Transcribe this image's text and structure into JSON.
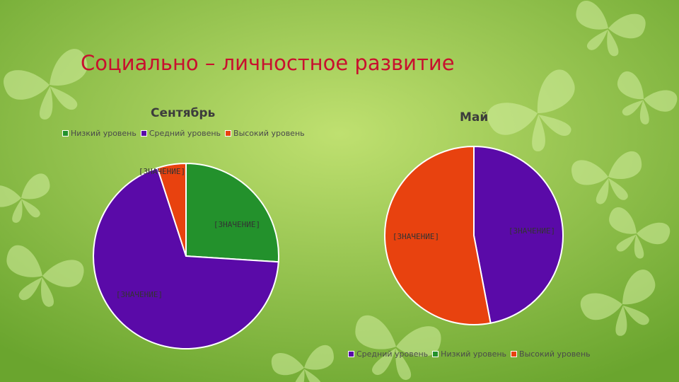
{
  "slide": {
    "title": "Социально – личностное развитие"
  },
  "colors": {
    "background_light": "#b9dc6a",
    "background_dark": "#6aa52e",
    "butterfly": "#d3eea0",
    "title": "#c8102e"
  },
  "chart_data": [
    {
      "type": "pie",
      "title": "Сентябрь",
      "legend_position": "top",
      "legend": [
        {
          "name": "Низкий уровень",
          "color": "#23912c"
        },
        {
          "name": "Средний уровень",
          "color": "#5a0aa8"
        },
        {
          "name": "Высокий уровень",
          "color": "#e8420f"
        }
      ],
      "slices": [
        {
          "name": "Низкий уровень",
          "value": 26,
          "color": "#23912c",
          "label": "[ЗНАЧЕНИЕ]"
        },
        {
          "name": "Средний уровень",
          "value": 69,
          "color": "#5a0aa8",
          "label": "[ЗНАЧЕНИЕ]"
        },
        {
          "name": "Высокий уровень",
          "value": 5,
          "color": "#e8420f",
          "label": "[ЗНАЧЕНИЕ]"
        }
      ]
    },
    {
      "type": "pie",
      "title": "Май",
      "legend_position": "bottom",
      "legend": [
        {
          "name": "Средний уровень",
          "color": "#5a0aa8"
        },
        {
          "name": "Низкий уровень",
          "color": "#23912c"
        },
        {
          "name": "Высокий уровень",
          "color": "#e8420f"
        }
      ],
      "slices": [
        {
          "name": "Средний уровень",
          "value": 47,
          "color": "#5a0aa8",
          "label": "[ЗНАЧЕНИЕ]"
        },
        {
          "name": "Высокий уровень",
          "value": 53,
          "color": "#e8420f",
          "label": "[ЗНАЧЕНИЕ]"
        }
      ]
    }
  ]
}
